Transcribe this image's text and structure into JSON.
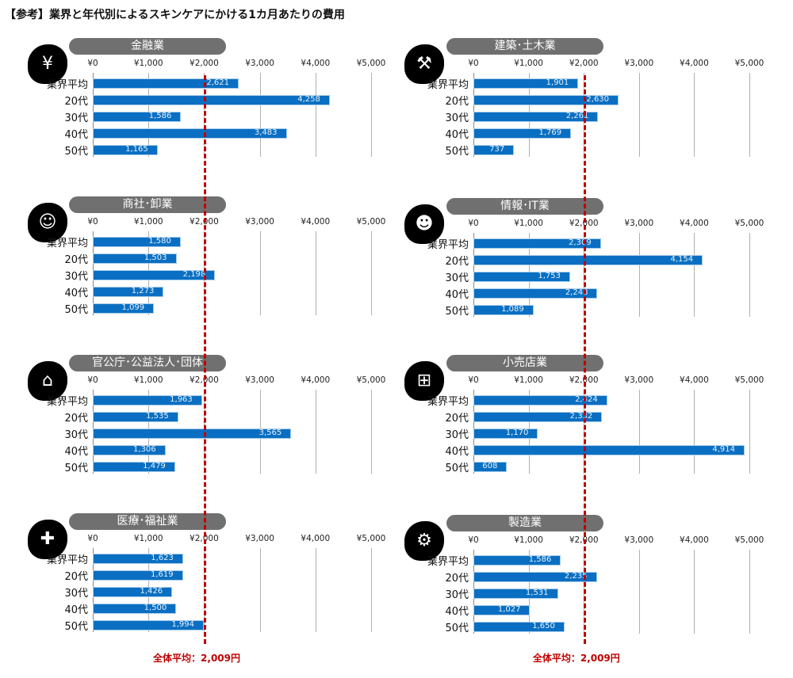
{
  "title": "【参考】業界と年代別によるスキンケアにかける1カ月あたりの費用",
  "chart_data": {
    "type": "bar",
    "orientation": "horizontal",
    "categories": [
      "業界平均",
      "20代",
      "30代",
      "40代",
      "50代"
    ],
    "xlim": [
      0,
      5000
    ],
    "tick_labels": [
      "¥0",
      "¥1,000",
      "¥2,000",
      "¥3,000",
      "¥4,000",
      "¥5,000"
    ],
    "bar_color": "#0a6fc2",
    "reference_line": {
      "value": 2009,
      "label": "全体平均：2,009円",
      "color": "#c00000",
      "style": "dashed"
    },
    "panels": [
      {
        "name": "金融業",
        "icon": "finance-icon",
        "values": [
          2621,
          4258,
          1586,
          3483,
          1165
        ]
      },
      {
        "name": "建築･土木業",
        "icon": "construction-icon",
        "values": [
          1901,
          2630,
          2261,
          1769,
          737
        ]
      },
      {
        "name": "商社･卸業",
        "icon": "trading-icon",
        "values": [
          1580,
          1503,
          2198,
          1273,
          1099
        ]
      },
      {
        "name": "情報･IT業",
        "icon": "it-icon",
        "values": [
          2309,
          4154,
          1753,
          2248,
          1089
        ]
      },
      {
        "name": "官公庁･公益法人･団体",
        "icon": "government-icon",
        "values": [
          1963,
          1535,
          3565,
          1306,
          1479
        ]
      },
      {
        "name": "小売店業",
        "icon": "shopping-cart-icon",
        "values": [
          2424,
          2332,
          1170,
          4914,
          608
        ]
      },
      {
        "name": "医療･福祉業",
        "icon": "medical-icon",
        "values": [
          1623,
          1619,
          1426,
          1500,
          1994
        ]
      },
      {
        "name": "製造業",
        "icon": "factory-icon",
        "values": [
          1586,
          2235,
          1531,
          1027,
          1650
        ]
      }
    ]
  }
}
